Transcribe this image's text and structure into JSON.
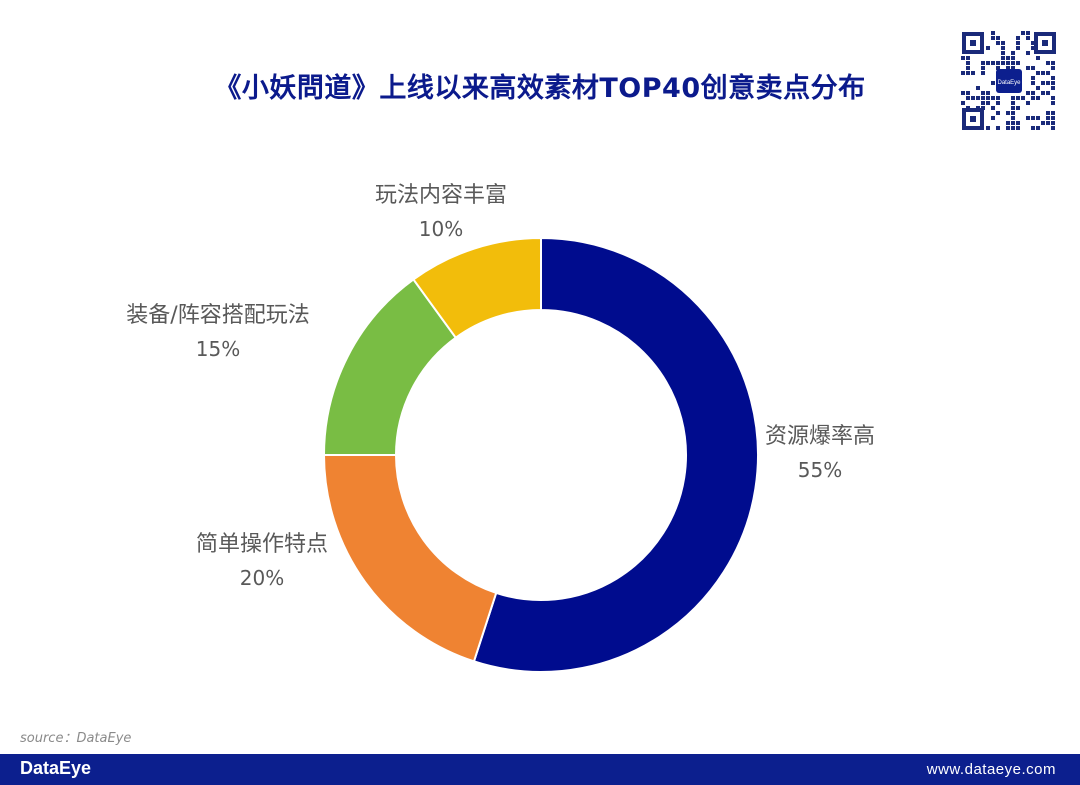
{
  "page": {
    "title": "《小妖問道》上线以来高效素材TOP40创意卖点分布",
    "source": "source：DataEye",
    "footer": {
      "brand": "DataEye",
      "url": "www.dataeye.com"
    },
    "qr": {
      "center_label": "DataEye",
      "icon": "qr-code-icon"
    }
  },
  "colors": {
    "title": "#0b1a8c",
    "footer_bg": "#0c1f8e",
    "label": "#595959"
  },
  "chart_data": {
    "type": "pie",
    "variant": "donut",
    "title": "",
    "start_angle_deg": 0,
    "direction": "clockwise",
    "slices": [
      {
        "label": "资源爆率高",
        "value": 55,
        "value_label": "55%",
        "color": "#000c8e"
      },
      {
        "label": "简单操作特点",
        "value": 20,
        "value_label": "20%",
        "color": "#ef8332"
      },
      {
        "label": "装备/阵容搭配玩法",
        "value": 15,
        "value_label": "15%",
        "color": "#79bd44"
      },
      {
        "label": "玩法内容丰富",
        "value": 10,
        "value_label": "10%",
        "color": "#f2bd0b"
      }
    ]
  }
}
